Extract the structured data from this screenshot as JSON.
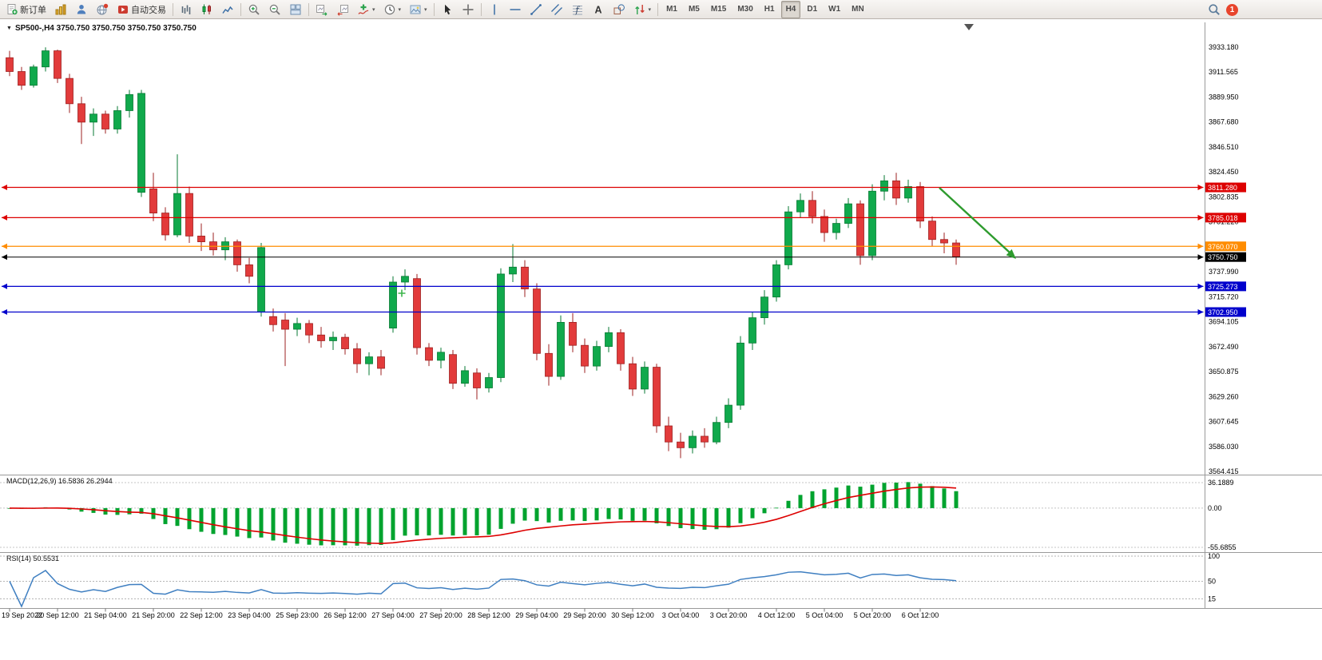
{
  "toolbar": {
    "items": [
      {
        "id": "new-order",
        "type": "button",
        "icon": "doc-plus-icon",
        "label": "新订单"
      },
      {
        "id": "charts",
        "type": "icon",
        "icon": "gold-chart-icon"
      },
      {
        "id": "profile",
        "type": "icon",
        "icon": "person-icon"
      },
      {
        "id": "community",
        "type": "icon",
        "icon": "globe-icon"
      },
      {
        "id": "autotrading",
        "type": "button",
        "icon": "autotrade-icon",
        "label": "自动交易"
      },
      {
        "id": "sep1",
        "type": "sep"
      },
      {
        "id": "bar-chart",
        "type": "icon",
        "icon": "bars-icon"
      },
      {
        "id": "candle-chart",
        "type": "icon",
        "icon": "candles-icon"
      },
      {
        "id": "line-chart",
        "type": "icon",
        "icon": "linechart-icon"
      },
      {
        "id": "sep2",
        "type": "sep"
      },
      {
        "id": "zoom-in",
        "type": "icon",
        "icon": "zoom-in-icon"
      },
      {
        "id": "zoom-out",
        "type": "icon",
        "icon": "zoom-out-icon"
      },
      {
        "id": "tile-windows",
        "type": "icon",
        "icon": "tiles-icon"
      },
      {
        "id": "sep3",
        "type": "sep"
      },
      {
        "id": "auto-scroll",
        "type": "icon",
        "icon": "autoscroll-icon"
      },
      {
        "id": "chart-shift",
        "type": "icon",
        "icon": "chartshift-icon"
      },
      {
        "id": "indicators",
        "type": "icon",
        "icon": "indicator-icon",
        "dropdown": true
      },
      {
        "id": "periods",
        "type": "icon",
        "icon": "clock-icon",
        "dropdown": true
      },
      {
        "id": "templates",
        "type": "icon",
        "icon": "template-icon",
        "dropdown": true
      },
      {
        "id": "sep4",
        "type": "sep"
      },
      {
        "id": "cursor",
        "type": "icon",
        "icon": "cursor-icon"
      },
      {
        "id": "crosshair",
        "type": "icon",
        "icon": "crosshair-icon"
      },
      {
        "id": "sep5",
        "type": "sep"
      },
      {
        "id": "vline",
        "type": "icon",
        "icon": "vline-icon"
      },
      {
        "id": "hline",
        "type": "icon",
        "icon": "hline-icon"
      },
      {
        "id": "trendline",
        "type": "icon",
        "icon": "trendline-icon"
      },
      {
        "id": "channel",
        "type": "icon",
        "icon": "channel-icon"
      },
      {
        "id": "fibonacci",
        "type": "icon",
        "icon": "fibo-icon"
      },
      {
        "id": "text-tool",
        "type": "icon",
        "icon": "text-icon"
      },
      {
        "id": "shapes",
        "type": "icon",
        "icon": "shapes-icon"
      },
      {
        "id": "arrows",
        "type": "icon",
        "icon": "arrows-icon",
        "dropdown": true
      },
      {
        "id": "sep6",
        "type": "sep"
      },
      {
        "id": "tf-m1",
        "type": "tf",
        "label": "M1"
      },
      {
        "id": "tf-m5",
        "type": "tf",
        "label": "M5"
      },
      {
        "id": "tf-m15",
        "type": "tf",
        "label": "M15"
      },
      {
        "id": "tf-m30",
        "type": "tf",
        "label": "M30"
      },
      {
        "id": "tf-h1",
        "type": "tf",
        "label": "H1"
      },
      {
        "id": "tf-h4",
        "type": "tf",
        "label": "H4",
        "active": true
      },
      {
        "id": "tf-d1",
        "type": "tf",
        "label": "D1"
      },
      {
        "id": "tf-w1",
        "type": "tf",
        "label": "W1"
      },
      {
        "id": "tf-mn",
        "type": "tf",
        "label": "MN"
      }
    ],
    "notification_count": "1"
  },
  "chart": {
    "title": "SP500-,H4 3750.750 3750.750 3750.750 3750.750",
    "price_axis": [
      "3933.180",
      "3911.565",
      "3889.950",
      "3867.680",
      "3846.510",
      "3824.450",
      "3802.835",
      "3781.220",
      "3759.605",
      "3737.990",
      "3715.720",
      "3694.105",
      "3672.490",
      "3650.875",
      "3629.260",
      "3607.645",
      "3586.030",
      "3564.415"
    ],
    "macd": {
      "label": "MACD(12,26,9) 16.5836 26.2944",
      "axis": [
        "36.1889",
        "0.00",
        "-55.6855"
      ]
    },
    "rsi": {
      "label": "RSI(14) 50.5531",
      "axis": [
        "100",
        "50",
        "15"
      ],
      "levels": [
        100,
        50,
        15
      ]
    }
  },
  "chart_data": {
    "type": "candlestick",
    "symbol": "SP500-",
    "timeframe": "H4",
    "ylim": [
      3564.415,
      3933.18
    ],
    "ohlc": [
      [
        3924,
        3930,
        3908,
        3912
      ],
      [
        3912,
        3916,
        3896,
        3900
      ],
      [
        3900,
        3918,
        3898,
        3916
      ],
      [
        3916,
        3933,
        3912,
        3930
      ],
      [
        3930,
        3931,
        3902,
        3906
      ],
      [
        3906,
        3910,
        3876,
        3884
      ],
      [
        3884,
        3890,
        3849,
        3868
      ],
      [
        3868,
        3880,
        3856,
        3875
      ],
      [
        3875,
        3878,
        3858,
        3862
      ],
      [
        3862,
        3882,
        3858,
        3878
      ],
      [
        3878,
        3896,
        3872,
        3892
      ],
      [
        3807,
        3896,
        3803,
        3893
      ],
      [
        3810,
        3824,
        3782,
        3789
      ],
      [
        3789,
        3794,
        3765,
        3770
      ],
      [
        3770,
        3840,
        3768,
        3806
      ],
      [
        3806,
        3812,
        3763,
        3769
      ],
      [
        3769,
        3780,
        3756,
        3764
      ],
      [
        3764,
        3772,
        3752,
        3757
      ],
      [
        3757,
        3768,
        3748,
        3764
      ],
      [
        3764,
        3766,
        3738,
        3744
      ],
      [
        3744,
        3750,
        3728,
        3734
      ],
      [
        3703,
        3763,
        3699,
        3759
      ],
      [
        3699,
        3706,
        3686,
        3692
      ],
      [
        3696,
        3702,
        3656,
        3688
      ],
      [
        3688,
        3698,
        3682,
        3693
      ],
      [
        3693,
        3696,
        3676,
        3683
      ],
      [
        3683,
        3690,
        3672,
        3678
      ],
      [
        3678,
        3686,
        3670,
        3681
      ],
      [
        3681,
        3684,
        3666,
        3671
      ],
      [
        3671,
        3676,
        3650,
        3658
      ],
      [
        3658,
        3668,
        3648,
        3664
      ],
      [
        3664,
        3670,
        3648,
        3654
      ],
      [
        3689,
        3734,
        3685,
        3729
      ],
      [
        3729,
        3740,
        3722,
        3734
      ],
      [
        3732,
        3736,
        3666,
        3672
      ],
      [
        3672,
        3676,
        3656,
        3661
      ],
      [
        3661,
        3672,
        3654,
        3668
      ],
      [
        3666,
        3670,
        3636,
        3641
      ],
      [
        3641,
        3656,
        3638,
        3652
      ],
      [
        3650,
        3654,
        3627,
        3637
      ],
      [
        3637,
        3650,
        3633,
        3646
      ],
      [
        3646,
        3741,
        3642,
        3736
      ],
      [
        3736,
        3762,
        3729,
        3742
      ],
      [
        3742,
        3748,
        3716,
        3723
      ],
      [
        3723,
        3728,
        3661,
        3667
      ],
      [
        3667,
        3675,
        3639,
        3647
      ],
      [
        3647,
        3700,
        3644,
        3694
      ],
      [
        3694,
        3702,
        3668,
        3674
      ],
      [
        3674,
        3680,
        3650,
        3656
      ],
      [
        3656,
        3678,
        3652,
        3673
      ],
      [
        3673,
        3690,
        3668,
        3685
      ],
      [
        3685,
        3688,
        3652,
        3658
      ],
      [
        3658,
        3664,
        3630,
        3636
      ],
      [
        3636,
        3660,
        3632,
        3655
      ],
      [
        3655,
        3658,
        3598,
        3604
      ],
      [
        3604,
        3612,
        3582,
        3590
      ],
      [
        3590,
        3598,
        3576,
        3585
      ],
      [
        3585,
        3600,
        3580,
        3595
      ],
      [
        3595,
        3602,
        3585,
        3590
      ],
      [
        3590,
        3612,
        3588,
        3607
      ],
      [
        3607,
        3628,
        3602,
        3622
      ],
      [
        3622,
        3682,
        3618,
        3676
      ],
      [
        3676,
        3703,
        3670,
        3698
      ],
      [
        3698,
        3722,
        3692,
        3716
      ],
      [
        3716,
        3748,
        3712,
        3744
      ],
      [
        3744,
        3795,
        3740,
        3790
      ],
      [
        3790,
        3806,
        3785,
        3800
      ],
      [
        3800,
        3808,
        3780,
        3786
      ],
      [
        3786,
        3792,
        3764,
        3772
      ],
      [
        3772,
        3784,
        3766,
        3780
      ],
      [
        3780,
        3802,
        3776,
        3797
      ],
      [
        3797,
        3800,
        3744,
        3752
      ],
      [
        3752,
        3814,
        3748,
        3808
      ],
      [
        3808,
        3822,
        3800,
        3817
      ],
      [
        3817,
        3824,
        3796,
        3802
      ],
      [
        3802,
        3818,
        3798,
        3812
      ],
      [
        3812,
        3816,
        3776,
        3782
      ],
      [
        3782,
        3786,
        3760,
        3766
      ],
      [
        3766,
        3772,
        3754,
        3763
      ],
      [
        3763,
        3766,
        3744,
        3751
      ]
    ],
    "x_labels": [
      "19 Sep 2022",
      "20 Sep 12:00",
      "21 Sep 04:00",
      "21 Sep 20:00",
      "22 Sep 12:00",
      "23 Sep 04:00",
      "25 Sep 23:00",
      "26 Sep 12:00",
      "27 Sep 04:00",
      "27 Sep 20:00",
      "28 Sep 12:00",
      "29 Sep 04:00",
      "29 Sep 20:00",
      "30 Sep 12:00",
      "3 Oct 04:00",
      "3 Oct 20:00",
      "4 Oct 12:00",
      "5 Oct 04:00",
      "5 Oct 20:00",
      "6 Oct 12:00"
    ],
    "hlines": [
      {
        "price": 3811.28,
        "label": "3811.280",
        "color": "#dd0000"
      },
      {
        "price": 3785.018,
        "label": "3785.018",
        "color": "#dd0000"
      },
      {
        "price": 3760.07,
        "label": "3760.070",
        "color": "#ff8c00"
      },
      {
        "price": 3750.75,
        "label": "3750.750",
        "color": "#000000",
        "role": "current-price"
      },
      {
        "price": 3725.273,
        "label": "3725.273",
        "color": "#0000cc"
      },
      {
        "price": 3702.95,
        "label": "3702.950",
        "color": "#0000cc"
      }
    ],
    "indicators": [
      {
        "name": "MACD",
        "params": [
          12,
          26,
          9
        ],
        "values": [
          16.5836,
          26.2944
        ],
        "range": [
          -55.6855,
          36.1889
        ],
        "histogram_color": "#00a32e",
        "signal_color": "#dd0000"
      },
      {
        "name": "RSI",
        "params": [
          14
        ],
        "value": 50.5531,
        "range": [
          0,
          100
        ],
        "levels": [
          100,
          50,
          15
        ],
        "line_color": "#3f7fc1"
      }
    ],
    "annotations": [
      {
        "type": "trend-arrow",
        "direction": "down-right",
        "color": "#2e9b2e"
      },
      {
        "type": "plus-marker",
        "color": "#3cb54a"
      }
    ]
  }
}
